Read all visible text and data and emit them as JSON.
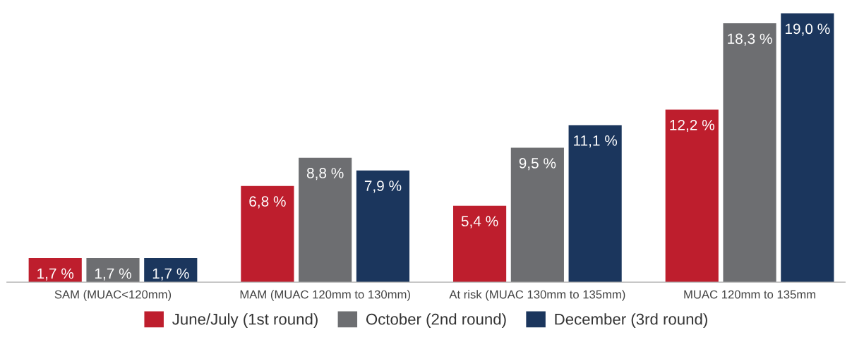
{
  "chart_data": {
    "type": "bar",
    "categories": [
      "SAM (MUAC<120mm)",
      "MAM (MUAC 120mm to 130mm)",
      "At risk (MUAC 130mm to 135mm)",
      "MUAC 120mm to 135mm"
    ],
    "series": [
      {
        "name": "June/July (1st round)",
        "color": "#be1e2d",
        "values": [
          1.7,
          6.8,
          5.4,
          12.2
        ],
        "value_labels": [
          "1,7 %",
          "6,8 %",
          "5,4 %",
          "12,2 %"
        ]
      },
      {
        "name": "October (2nd round)",
        "color": "#6d6e71",
        "values": [
          1.7,
          8.8,
          9.5,
          18.3
        ],
        "value_labels": [
          "1,7 %",
          "8,8 %",
          "9,5 %",
          "18,3 %"
        ]
      },
      {
        "name": "December (3rd round)",
        "color": "#1b365d",
        "values": [
          1.7,
          7.9,
          11.1,
          19.0
        ],
        "value_labels": [
          "1,7 %",
          "7,9 %",
          "11,1 %",
          "19,0 %"
        ]
      }
    ],
    "tick_labels": "x",
    "grid": false,
    "legend": "bottom"
  }
}
